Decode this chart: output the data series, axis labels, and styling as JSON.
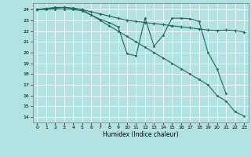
{
  "xlabel": "Humidex (Indice chaleur)",
  "bg_color": "#b2e2e2",
  "grid_color": "#ffffff",
  "line_color": "#1a6b5a",
  "xlim": [
    -0.5,
    23.5
  ],
  "ylim": [
    13.5,
    24.6
  ],
  "xticks": [
    0,
    1,
    2,
    3,
    4,
    5,
    6,
    7,
    8,
    9,
    10,
    11,
    12,
    13,
    14,
    15,
    16,
    17,
    18,
    19,
    20,
    21,
    22,
    23
  ],
  "yticks": [
    14,
    15,
    16,
    17,
    18,
    19,
    20,
    21,
    22,
    23,
    24
  ],
  "series1_x": [
    0,
    1,
    2,
    3,
    4,
    5,
    6,
    7,
    8,
    9,
    10,
    11,
    12,
    13,
    14,
    15,
    16,
    17,
    18,
    19,
    20,
    21,
    22,
    23
  ],
  "series1_y": [
    24.0,
    24.1,
    24.15,
    24.2,
    24.1,
    24.0,
    23.8,
    23.6,
    23.4,
    23.2,
    23.0,
    22.9,
    22.8,
    22.7,
    22.6,
    22.5,
    22.4,
    22.3,
    22.2,
    22.1,
    22.05,
    22.1,
    22.05,
    21.9
  ],
  "series2_x": [
    0,
    1,
    2,
    3,
    4,
    5,
    6,
    7,
    8,
    9,
    10,
    11,
    12,
    13,
    14,
    15,
    16,
    17,
    18,
    19,
    20,
    21
  ],
  "series2_y": [
    24.0,
    24.1,
    24.2,
    24.2,
    24.15,
    24.0,
    23.5,
    23.1,
    22.8,
    22.4,
    19.9,
    19.7,
    23.2,
    20.6,
    21.6,
    23.2,
    23.2,
    23.15,
    22.9,
    20.0,
    18.5,
    16.2
  ],
  "series3_x": [
    0,
    1,
    2,
    3,
    4,
    5,
    6,
    7,
    8,
    9,
    10,
    11,
    12,
    13,
    14,
    15,
    16,
    17,
    18,
    19,
    20,
    21,
    22,
    23
  ],
  "series3_y": [
    24.0,
    24.0,
    24.05,
    24.05,
    24.0,
    23.9,
    23.5,
    23.0,
    22.5,
    22.0,
    21.5,
    21.0,
    20.5,
    20.0,
    19.5,
    19.0,
    18.5,
    18.0,
    17.5,
    17.0,
    16.0,
    15.5,
    14.5,
    14.1
  ]
}
